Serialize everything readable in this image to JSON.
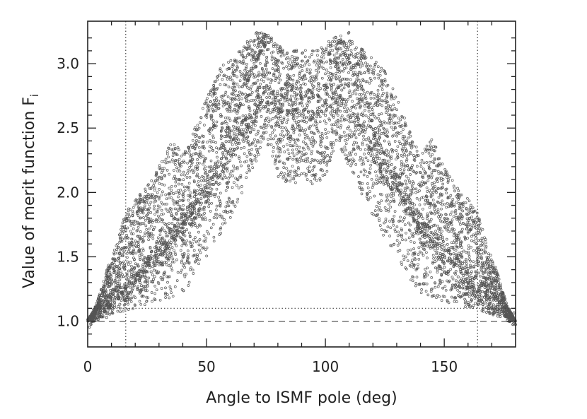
{
  "chart_data": {
    "type": "scatter",
    "xlabel": "Angle to ISMF pole (deg)",
    "ylabel": "Value of merit function F",
    "ylabel_subscript": "i",
    "xlim": [
      0,
      180
    ],
    "ylim": [
      0.8,
      3.33
    ],
    "x_ticks": [
      0,
      50,
      100,
      150
    ],
    "x_tick_labels": [
      "0",
      "50",
      "100",
      "150"
    ],
    "y_ticks": [
      1.0,
      1.5,
      2.0,
      2.5,
      3.0
    ],
    "y_tick_labels": [
      "1.0",
      "1.5",
      "2.0",
      "2.5",
      "3.0"
    ],
    "grid": false,
    "marker_color": "#555555",
    "reference_lines": [
      {
        "orientation": "horizontal",
        "value": 1.0,
        "style": "dashed"
      },
      {
        "orientation": "horizontal",
        "value": 1.1,
        "style": "dotted"
      },
      {
        "orientation": "vertical",
        "value": 16,
        "style": "dotted"
      },
      {
        "orientation": "vertical",
        "value": 164,
        "style": "dotted"
      }
    ],
    "envelope": {
      "upper": [
        [
          0,
          1.0
        ],
        [
          4,
          1.15
        ],
        [
          8,
          1.4
        ],
        [
          12,
          1.6
        ],
        [
          16,
          1.85
        ],
        [
          20,
          1.95
        ],
        [
          25,
          2.05
        ],
        [
          30,
          2.2
        ],
        [
          35,
          2.42
        ],
        [
          40,
          2.3
        ],
        [
          45,
          2.5
        ],
        [
          50,
          2.75
        ],
        [
          55,
          2.95
        ],
        [
          60,
          3.05
        ],
        [
          65,
          3.12
        ],
        [
          70,
          3.25
        ],
        [
          75,
          3.25
        ],
        [
          80,
          3.15
        ],
        [
          85,
          3.1
        ],
        [
          90,
          3.12
        ],
        [
          95,
          3.1
        ],
        [
          100,
          3.15
        ],
        [
          105,
          3.25
        ],
        [
          110,
          3.25
        ],
        [
          115,
          3.12
        ],
        [
          120,
          3.05
        ],
        [
          125,
          2.95
        ],
        [
          130,
          2.75
        ],
        [
          135,
          2.5
        ],
        [
          140,
          2.3
        ],
        [
          145,
          2.42
        ],
        [
          150,
          2.2
        ],
        [
          155,
          2.05
        ],
        [
          160,
          1.95
        ],
        [
          164,
          1.85
        ],
        [
          168,
          1.6
        ],
        [
          172,
          1.4
        ],
        [
          176,
          1.15
        ],
        [
          180,
          1.0
        ]
      ],
      "lower": [
        [
          0,
          1.0
        ],
        [
          10,
          1.05
        ],
        [
          20,
          1.1
        ],
        [
          30,
          1.15
        ],
        [
          40,
          1.2
        ],
        [
          50,
          1.5
        ],
        [
          60,
          1.8
        ],
        [
          65,
          2.0
        ],
        [
          70,
          2.2
        ],
        [
          75,
          2.4
        ],
        [
          80,
          2.1
        ],
        [
          85,
          2.05
        ],
        [
          90,
          2.1
        ],
        [
          95,
          2.05
        ],
        [
          100,
          2.1
        ],
        [
          105,
          2.4
        ],
        [
          110,
          2.2
        ],
        [
          115,
          2.0
        ],
        [
          120,
          1.8
        ],
        [
          130,
          1.5
        ],
        [
          140,
          1.2
        ],
        [
          150,
          1.15
        ],
        [
          160,
          1.1
        ],
        [
          170,
          1.05
        ],
        [
          180,
          1.0
        ]
      ]
    }
  }
}
